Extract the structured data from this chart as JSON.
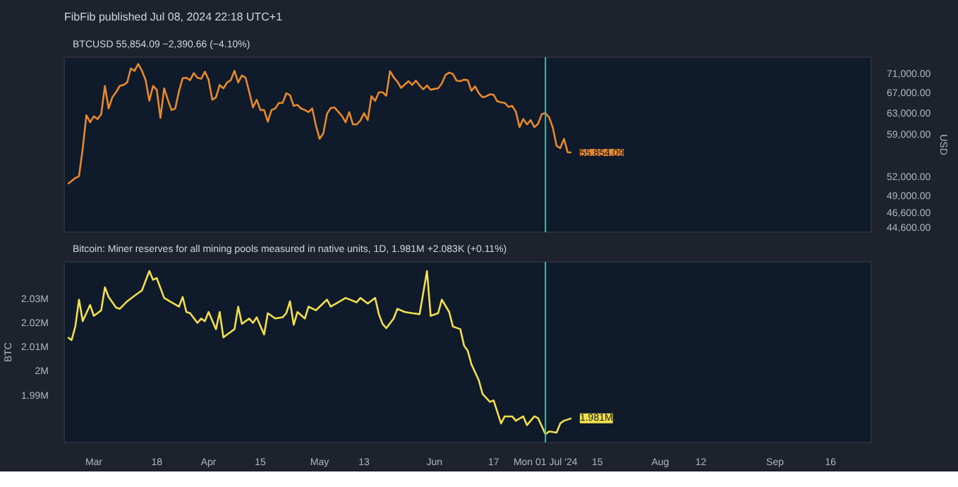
{
  "chart_data": [
    {
      "type": "line",
      "title": "FibFib published Jul 08, 2024 22:18 UTC+1",
      "subtitle": "BTCUSD  55,854.09  −2,390.66 (−4.10%)",
      "ylabel": "USD",
      "log": "y",
      "grid": false,
      "tick_labels": "y",
      "marker": "none",
      "line_style": "solid",
      "xlim": [
        "2024-02-22",
        "2024-09-27"
      ],
      "ylim": [
        43900,
        74500
      ],
      "yticks": [
        {
          "value": 44600,
          "label": "44,600.00"
        },
        {
          "value": 46600,
          "label": "46,600.00"
        },
        {
          "value": 49000,
          "label": "49,000.00"
        },
        {
          "value": 52000,
          "label": "52,000.00"
        },
        {
          "value": 59000,
          "label": "59,000.00"
        },
        {
          "value": 63000,
          "label": "63,000.00"
        },
        {
          "value": 67000,
          "label": "67,000.00"
        },
        {
          "value": 71000,
          "label": "71,000.00"
        }
      ],
      "ref_lines": [
        {
          "axis": "x",
          "value": "2024-07-01",
          "color": "#26c6b0"
        }
      ],
      "annotations": [
        {
          "text": "55,854.09",
          "x": "2024-07-08",
          "y": 55854.09
        }
      ],
      "x": [
        "2024-02-23",
        "2024-02-25",
        "2024-02-26",
        "2024-02-27",
        "2024-02-28",
        "2024-02-29",
        "2024-03-01",
        "2024-03-02",
        "2024-03-03",
        "2024-03-04",
        "2024-03-05",
        "2024-03-06",
        "2024-03-07",
        "2024-03-08",
        "2024-03-09",
        "2024-03-10",
        "2024-03-11",
        "2024-03-12",
        "2024-03-13",
        "2024-03-14",
        "2024-03-15",
        "2024-03-16",
        "2024-03-17",
        "2024-03-18",
        "2024-03-19",
        "2024-03-20",
        "2024-03-21",
        "2024-03-22",
        "2024-03-23",
        "2024-03-24",
        "2024-03-25",
        "2024-03-26",
        "2024-03-27",
        "2024-03-28",
        "2024-03-29",
        "2024-03-30",
        "2024-03-31",
        "2024-04-01",
        "2024-04-02",
        "2024-04-03",
        "2024-04-04",
        "2024-04-05",
        "2024-04-06",
        "2024-04-07",
        "2024-04-08",
        "2024-04-09",
        "2024-04-10",
        "2024-04-11",
        "2024-04-12",
        "2024-04-13",
        "2024-04-14",
        "2024-04-15",
        "2024-04-16",
        "2024-04-17",
        "2024-04-18",
        "2024-04-19",
        "2024-04-20",
        "2024-04-21",
        "2024-04-22",
        "2024-04-23",
        "2024-04-24",
        "2024-04-25",
        "2024-04-26",
        "2024-04-27",
        "2024-04-28",
        "2024-04-29",
        "2024-04-30",
        "2024-05-01",
        "2024-05-02",
        "2024-05-03",
        "2024-05-04",
        "2024-05-05",
        "2024-05-06",
        "2024-05-07",
        "2024-05-08",
        "2024-05-09",
        "2024-05-10",
        "2024-05-11",
        "2024-05-12",
        "2024-05-13",
        "2024-05-14",
        "2024-05-15",
        "2024-05-16",
        "2024-05-17",
        "2024-05-18",
        "2024-05-19",
        "2024-05-20",
        "2024-05-21",
        "2024-05-22",
        "2024-05-23",
        "2024-05-24",
        "2024-05-25",
        "2024-05-26",
        "2024-05-27",
        "2024-05-28",
        "2024-05-29",
        "2024-05-30",
        "2024-05-31",
        "2024-06-01",
        "2024-06-02",
        "2024-06-03",
        "2024-06-04",
        "2024-06-05",
        "2024-06-06",
        "2024-06-07",
        "2024-06-08",
        "2024-06-09",
        "2024-06-10",
        "2024-06-11",
        "2024-06-12",
        "2024-06-13",
        "2024-06-14",
        "2024-06-15",
        "2024-06-16",
        "2024-06-17",
        "2024-06-18",
        "2024-06-19",
        "2024-06-20",
        "2024-06-21",
        "2024-06-22",
        "2024-06-23",
        "2024-06-24",
        "2024-06-25",
        "2024-06-26",
        "2024-06-27",
        "2024-06-28",
        "2024-06-29",
        "2024-06-30",
        "2024-07-01",
        "2024-07-02",
        "2024-07-03",
        "2024-07-04",
        "2024-07-05",
        "2024-07-06",
        "2024-07-07",
        "2024-07-08"
      ],
      "series": [
        {
          "color": "#e8892b",
          "values": [
            50800,
            51700,
            52000,
            56500,
            62500,
            61200,
            62300,
            61800,
            62700,
            68300,
            63800,
            66000,
            67000,
            68300,
            68500,
            69000,
            72000,
            71500,
            73000,
            71500,
            69500,
            65300,
            68300,
            67500,
            62000,
            67800,
            65500,
            63500,
            63800,
            67200,
            69900,
            70000,
            69500,
            71000,
            70000,
            69800,
            71300,
            69600,
            65500,
            66000,
            68500,
            67800,
            69000,
            69500,
            71500,
            69000,
            70500,
            70000,
            67000,
            64000,
            65500,
            63500,
            63500,
            61300,
            63500,
            63800,
            64900,
            64900,
            66800,
            66400,
            64300,
            64500,
            63800,
            63500,
            63100,
            63800,
            60600,
            58200,
            59200,
            62800,
            63900,
            64000,
            63200,
            62400,
            61200,
            63100,
            60800,
            60800,
            61500,
            62900,
            61600,
            66200,
            65300,
            67000,
            67000,
            66300,
            71400,
            70100,
            69200,
            67900,
            68600,
            69300,
            68500,
            69400,
            68400,
            67600,
            68400,
            67500,
            67700,
            67800,
            68800,
            70600,
            71100,
            70800,
            69400,
            69300,
            69600,
            69500,
            67300,
            68200,
            66800,
            66000,
            66200,
            66600,
            66500,
            65200,
            65000,
            64900,
            64100,
            64300,
            63200,
            60300,
            61800,
            60800,
            61600,
            60300,
            60900,
            62700,
            62900,
            62100,
            60200,
            57000,
            56600,
            58200,
            55900,
            55854.09
          ]
        }
      ]
    },
    {
      "type": "line",
      "title": "Bitcoin: Miner reserves for all mining pools measured in native units, 1D,  1.981M  +2.083K (+0.11%)",
      "ylabel": "BTC",
      "grid": false,
      "marker": "none",
      "line_style": "solid",
      "xlim": [
        "2024-02-22",
        "2024-09-27"
      ],
      "ylim": [
        1.971,
        2.0456
      ],
      "xticks": [
        {
          "value": "2024-03-01",
          "label": "Mar"
        },
        {
          "value": "2024-03-18",
          "label": "18"
        },
        {
          "value": "2024-04-01",
          "label": "Apr"
        },
        {
          "value": "2024-04-15",
          "label": "15"
        },
        {
          "value": "2024-05-01",
          "label": "May"
        },
        {
          "value": "2024-05-13",
          "label": "13"
        },
        {
          "value": "2024-06-01",
          "label": "Jun"
        },
        {
          "value": "2024-06-17",
          "label": "17"
        },
        {
          "value": "2024-07-15",
          "label": "15"
        },
        {
          "value": "2024-08-01",
          "label": "Aug"
        },
        {
          "value": "2024-08-12",
          "label": "12"
        },
        {
          "value": "2024-09-01",
          "label": "Sep"
        },
        {
          "value": "2024-09-16",
          "label": "16"
        }
      ],
      "yticks": [
        {
          "value": 1.99,
          "label": "1.99M"
        },
        {
          "value": 2.0,
          "label": "2M"
        },
        {
          "value": 2.01,
          "label": "2.01M"
        },
        {
          "value": 2.02,
          "label": "2.02M"
        },
        {
          "value": 2.03,
          "label": "2.03M"
        }
      ],
      "ref_lines": [
        {
          "axis": "x",
          "value": "2024-07-01",
          "label": "Mon 01 Jul '24",
          "color": "#26c6b0"
        }
      ],
      "annotations": [
        {
          "text": "1.981M",
          "x": "2024-07-08",
          "y": 1.981
        }
      ],
      "x": [
        "2024-02-23",
        "2024-02-24",
        "2024-02-25",
        "2024-02-26",
        "2024-02-27",
        "2024-02-29",
        "2024-03-01",
        "2024-03-02",
        "2024-03-03",
        "2024-03-04",
        "2024-03-05",
        "2024-03-07",
        "2024-03-08",
        "2024-03-10",
        "2024-03-12",
        "2024-03-14",
        "2024-03-15",
        "2024-03-16",
        "2024-03-17",
        "2024-03-18",
        "2024-03-20",
        "2024-03-22",
        "2024-03-24",
        "2024-03-25",
        "2024-03-26",
        "2024-03-27",
        "2024-03-29",
        "2024-03-30",
        "2024-03-31",
        "2024-04-01",
        "2024-04-03",
        "2024-04-04",
        "2024-04-05",
        "2024-04-06",
        "2024-04-08",
        "2024-04-09",
        "2024-04-10",
        "2024-04-12",
        "2024-04-13",
        "2024-04-14",
        "2024-04-16",
        "2024-04-17",
        "2024-04-19",
        "2024-04-21",
        "2024-04-22",
        "2024-04-23",
        "2024-04-24",
        "2024-04-25",
        "2024-04-27",
        "2024-04-28",
        "2024-04-30",
        "2024-05-01",
        "2024-05-03",
        "2024-05-04",
        "2024-05-06",
        "2024-05-08",
        "2024-05-11",
        "2024-05-12",
        "2024-05-14",
        "2024-05-16",
        "2024-05-17",
        "2024-05-18",
        "2024-05-19",
        "2024-05-21",
        "2024-05-22",
        "2024-05-24",
        "2024-05-26",
        "2024-05-28",
        "2024-05-30",
        "2024-05-31",
        "2024-06-02",
        "2024-06-03",
        "2024-06-05",
        "2024-06-06",
        "2024-06-08",
        "2024-06-09",
        "2024-06-10",
        "2024-06-11",
        "2024-06-13",
        "2024-06-14",
        "2024-06-16",
        "2024-06-17",
        "2024-06-19",
        "2024-06-20",
        "2024-06-22",
        "2024-06-23",
        "2024-06-25",
        "2024-06-26",
        "2024-06-28",
        "2024-06-29",
        "2024-07-01",
        "2024-07-02",
        "2024-07-04",
        "2024-07-05",
        "2024-07-06",
        "2024-07-08"
      ],
      "series": [
        {
          "color": "#f2df4b",
          "values": [
            2.0144,
            2.0133,
            2.0189,
            2.03,
            2.0211,
            2.0278,
            2.0233,
            2.0244,
            2.0256,
            2.0351,
            2.0311,
            2.0267,
            2.0262,
            2.0293,
            2.0316,
            2.0338,
            2.0378,
            2.0418,
            2.0382,
            2.0389,
            2.0307,
            2.0289,
            2.0271,
            2.0311,
            2.0249,
            2.0244,
            2.0204,
            2.0222,
            2.0211,
            2.0249,
            2.0178,
            2.0249,
            2.0144,
            2.0156,
            2.0178,
            2.0271,
            2.02,
            2.0222,
            2.0204,
            2.0227,
            2.0156,
            2.0244,
            2.0222,
            2.0227,
            2.0244,
            2.0293,
            2.0196,
            2.0249,
            2.0222,
            2.0271,
            2.0256,
            2.0271,
            2.03,
            2.0271,
            2.0289,
            2.0307,
            2.0289,
            2.0307,
            2.0284,
            2.0307,
            2.024,
            2.02,
            2.0182,
            2.0222,
            2.0262,
            2.0249,
            2.0244,
            2.024,
            2.0418,
            2.0233,
            2.0244,
            2.03,
            2.0249,
            2.0189,
            2.0178,
            2.0111,
            2.0089,
            2.0033,
            1.9967,
            1.9911,
            1.9878,
            1.9884,
            1.9789,
            1.9818,
            1.9818,
            1.98,
            1.9818,
            1.9782,
            1.9818,
            1.9811,
            1.9744,
            1.9756,
            1.9751,
            1.9789,
            1.98,
            1.981
          ]
        }
      ]
    }
  ]
}
